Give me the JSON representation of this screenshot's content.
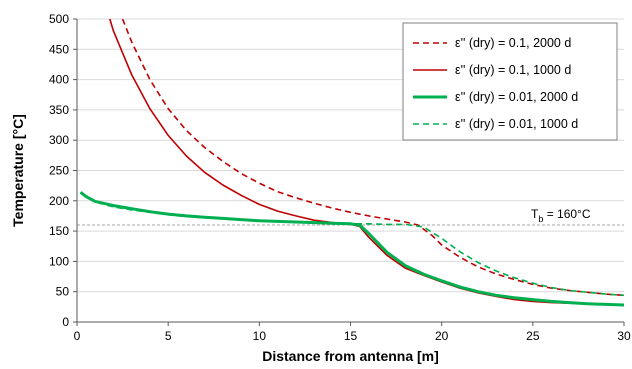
{
  "chart_data": {
    "type": "line",
    "xlabel": "Distance from antenna [m]",
    "ylabel": "Temperature [°C]",
    "xlim": [
      0,
      30
    ],
    "ylim": [
      0,
      500
    ],
    "xticks": [
      0,
      5,
      10,
      15,
      20,
      25,
      30
    ],
    "yticks": [
      0,
      50,
      100,
      150,
      200,
      250,
      300,
      350,
      400,
      450,
      500
    ],
    "grid": "horizontal",
    "legend_position": "top-right",
    "series": [
      {
        "name": "ε'' (dry) = 0.1, 2000 d",
        "color": "#c00000",
        "style": "dashed",
        "width": "thin",
        "x": [
          2.5,
          3,
          4,
          5,
          6,
          7,
          8,
          9,
          10,
          11,
          12,
          13,
          14,
          15,
          16,
          17,
          18,
          18.7,
          19.5,
          20,
          21,
          22,
          23,
          24,
          25,
          26,
          27,
          28,
          29,
          30
        ],
        "y": [
          500,
          462,
          400,
          352,
          316,
          288,
          265,
          245,
          229,
          215,
          205,
          196,
          188,
          181,
          175,
          170,
          165,
          160,
          142,
          127,
          107,
          91,
          79,
          70,
          62,
          56,
          52,
          49,
          46,
          44
        ]
      },
      {
        "name": "ε'' (dry) = 0.1, 1000 d",
        "color": "#c00000",
        "style": "solid",
        "width": "thin",
        "x": [
          1.8,
          2,
          3,
          4,
          5,
          6,
          7,
          8,
          9,
          10,
          11,
          12,
          13,
          14,
          15,
          15.5,
          16,
          17,
          18,
          19,
          20,
          21,
          22,
          23,
          24,
          25,
          26,
          27,
          28,
          29,
          30
        ],
        "y": [
          500,
          480,
          408,
          352,
          308,
          274,
          247,
          226,
          209,
          194,
          183,
          175,
          168,
          164,
          161,
          158,
          140,
          110,
          89,
          77,
          66,
          56,
          48,
          42,
          37,
          34,
          32,
          31,
          30,
          29,
          28
        ]
      },
      {
        "name": "ε'' (dry) = 0.01, 2000 d",
        "color": "#00b050",
        "style": "solid",
        "width": "thick",
        "x": [
          0.2,
          0.5,
          1,
          2,
          3,
          4,
          5,
          6,
          7,
          8,
          9,
          10,
          11,
          12,
          13,
          14,
          15,
          15.5,
          16,
          17,
          18,
          19,
          20,
          21,
          22,
          23,
          24,
          25,
          26,
          27,
          28,
          29,
          30
        ],
        "y": [
          214,
          207,
          199,
          192,
          187,
          182,
          178,
          175,
          173,
          171,
          169,
          167,
          166,
          165,
          164,
          163,
          162,
          160,
          146,
          115,
          93,
          79,
          68,
          58,
          50,
          44,
          40,
          37,
          34,
          32,
          30,
          29,
          28
        ]
      },
      {
        "name": "ε'' (dry) = 0.01, 1000 d",
        "color": "#00b050",
        "style": "dashed",
        "width": "thin",
        "x": [
          0.2,
          0.5,
          1,
          2,
          3,
          4,
          5,
          6,
          7,
          8,
          9,
          10,
          11,
          12,
          13,
          14,
          15,
          16,
          17,
          18,
          19,
          20,
          21,
          22,
          23,
          24,
          25,
          26,
          27,
          28,
          29,
          30
        ],
        "y": [
          214,
          206,
          198,
          190,
          185,
          181,
          177,
          174,
          172,
          170,
          168,
          167,
          166,
          165,
          164,
          163,
          162,
          162,
          161,
          161,
          157,
          138,
          116,
          98,
          84,
          73,
          64,
          57,
          52,
          49,
          46,
          44
        ]
      }
    ],
    "reference_line": {
      "y": 160,
      "color": "#a6a6a6",
      "style": "dashed",
      "label_main": "T",
      "label_sub": "b",
      "label_rest": " = 160°C"
    },
    "grid_color": "#d9d9d9"
  }
}
